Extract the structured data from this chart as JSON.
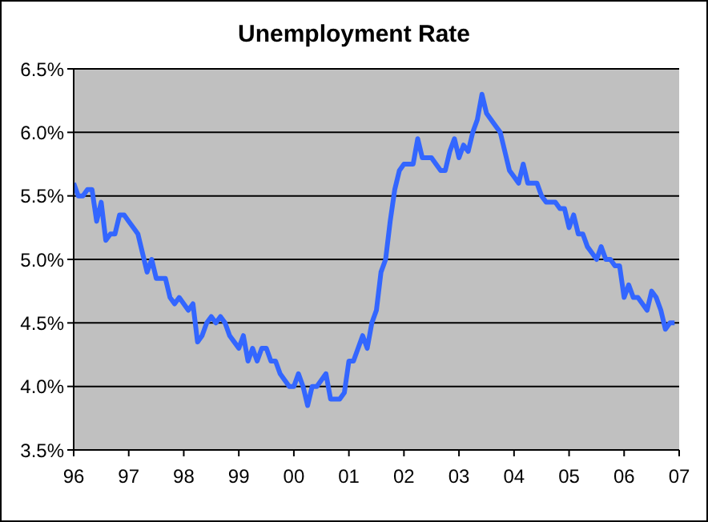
{
  "chart_data": {
    "type": "line",
    "title": "Unemployment Rate",
    "x": [
      1996,
      1996.083,
      1996.167,
      1996.25,
      1996.333,
      1996.417,
      1996.5,
      1996.583,
      1996.667,
      1996.75,
      1996.833,
      1996.917,
      1997,
      1997.083,
      1997.167,
      1997.25,
      1997.333,
      1997.417,
      1997.5,
      1997.583,
      1997.667,
      1997.75,
      1997.833,
      1997.917,
      1998,
      1998.083,
      1998.167,
      1998.25,
      1998.333,
      1998.417,
      1998.5,
      1998.583,
      1998.667,
      1998.75,
      1998.833,
      1998.917,
      1999,
      1999.083,
      1999.167,
      1999.25,
      1999.333,
      1999.417,
      1999.5,
      1999.583,
      1999.667,
      1999.75,
      1999.833,
      1999.917,
      2000,
      2000.083,
      2000.167,
      2000.25,
      2000.333,
      2000.417,
      2000.5,
      2000.583,
      2000.667,
      2000.75,
      2000.833,
      2000.917,
      2001,
      2001.083,
      2001.167,
      2001.25,
      2001.333,
      2001.417,
      2001.5,
      2001.583,
      2001.667,
      2001.75,
      2001.833,
      2001.917,
      2002,
      2002.083,
      2002.167,
      2002.25,
      2002.333,
      2002.417,
      2002.5,
      2002.583,
      2002.667,
      2002.75,
      2002.833,
      2002.917,
      2003,
      2003.083,
      2003.167,
      2003.25,
      2003.333,
      2003.417,
      2003.5,
      2003.583,
      2003.667,
      2003.75,
      2003.833,
      2003.917,
      2004,
      2004.083,
      2004.167,
      2004.25,
      2004.333,
      2004.417,
      2004.5,
      2004.583,
      2004.667,
      2004.75,
      2004.833,
      2004.917,
      2005,
      2005.083,
      2005.167,
      2005.25,
      2005.333,
      2005.417,
      2005.5,
      2005.583,
      2005.667,
      2005.75,
      2005.833,
      2005.917,
      2006,
      2006.083,
      2006.167,
      2006.25,
      2006.333,
      2006.417,
      2006.5,
      2006.583,
      2006.667,
      2006.75,
      2006.833,
      2006.917
    ],
    "series": [
      {
        "color": "#3366ff",
        "values": [
          5.6,
          5.5,
          5.5,
          5.55,
          5.55,
          5.3,
          5.45,
          5.15,
          5.2,
          5.2,
          5.35,
          5.35,
          5.3,
          5.25,
          5.2,
          5.05,
          4.9,
          5.0,
          4.85,
          4.85,
          4.85,
          4.7,
          4.65,
          4.7,
          4.65,
          4.6,
          4.65,
          4.35,
          4.4,
          4.5,
          4.55,
          4.5,
          4.55,
          4.5,
          4.4,
          4.35,
          4.3,
          4.4,
          4.2,
          4.3,
          4.2,
          4.3,
          4.3,
          4.2,
          4.2,
          4.1,
          4.05,
          4.0,
          4.0,
          4.1,
          4.0,
          3.85,
          4.0,
          4.0,
          4.05,
          4.1,
          3.9,
          3.9,
          3.9,
          3.95,
          4.2,
          4.2,
          4.3,
          4.4,
          4.3,
          4.5,
          4.6,
          4.9,
          5.0,
          5.3,
          5.55,
          5.7,
          5.75,
          5.75,
          5.75,
          5.95,
          5.8,
          5.8,
          5.8,
          5.75,
          5.7,
          5.7,
          5.85,
          5.95,
          5.8,
          5.9,
          5.85,
          6.0,
          6.1,
          6.3,
          6.15,
          6.1,
          6.05,
          6.0,
          5.85,
          5.7,
          5.65,
          5.6,
          5.75,
          5.6,
          5.6,
          5.6,
          5.5,
          5.45,
          5.45,
          5.45,
          5.4,
          5.4,
          5.25,
          5.35,
          5.2,
          5.2,
          5.1,
          5.05,
          5.0,
          5.1,
          5.0,
          5.0,
          4.95,
          4.95,
          4.7,
          4.8,
          4.7,
          4.7,
          4.65,
          4.6,
          4.75,
          4.7,
          4.6,
          4.45,
          4.5,
          4.5
        ]
      }
    ],
    "xlim": [
      1996,
      2007
    ],
    "xticks": [
      {
        "value": 1996,
        "label": "96"
      },
      {
        "value": 1997,
        "label": "97"
      },
      {
        "value": 1998,
        "label": "98"
      },
      {
        "value": 1999,
        "label": "99"
      },
      {
        "value": 2000,
        "label": "00"
      },
      {
        "value": 2001,
        "label": "01"
      },
      {
        "value": 2002,
        "label": "02"
      },
      {
        "value": 2003,
        "label": "03"
      },
      {
        "value": 2004,
        "label": "04"
      },
      {
        "value": 2005,
        "label": "05"
      },
      {
        "value": 2006,
        "label": "06"
      },
      {
        "value": 2007,
        "label": "07"
      }
    ],
    "ylim": [
      3.5,
      6.5
    ],
    "yticks": [
      {
        "value": 3.5,
        "label": "3.5%"
      },
      {
        "value": 4.0,
        "label": "4.0%"
      },
      {
        "value": 4.5,
        "label": "4.5%"
      },
      {
        "value": 5.0,
        "label": "5.0%"
      },
      {
        "value": 5.5,
        "label": "5.5%"
      },
      {
        "value": 6.0,
        "label": "6.0%"
      },
      {
        "value": 6.5,
        "label": "6.5%"
      }
    ],
    "grid": "y"
  }
}
